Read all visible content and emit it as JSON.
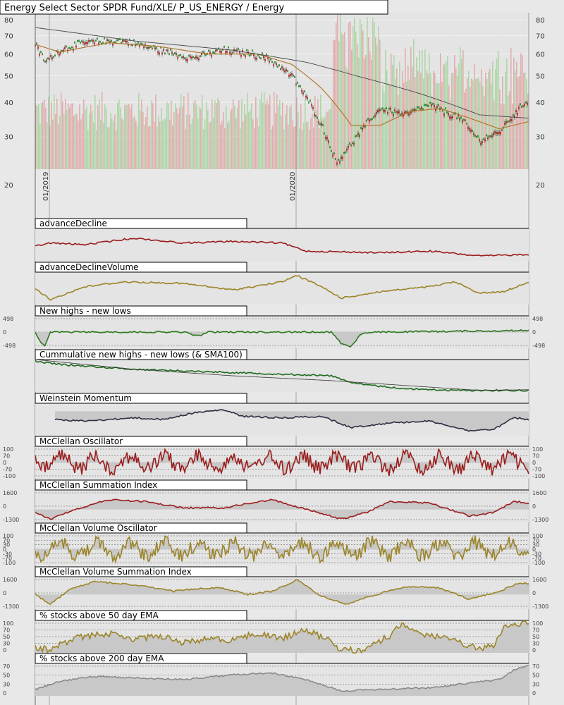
{
  "chart_data": {
    "type": "line",
    "title": "Energy Select Sector SPDR Fund/XLE/ P_US_ENERGY / Energy",
    "x_labels": [
      "01/2019",
      "01/2020"
    ],
    "main": {
      "y_ticks": [
        80,
        70,
        60,
        50,
        40,
        30,
        20
      ],
      "scale": "log",
      "ylim": [
        20,
        85
      ],
      "price_series": "candlestick",
      "price_path": [
        [
          0,
          65
        ],
        [
          0.02,
          56
        ],
        [
          0.05,
          62
        ],
        [
          0.1,
          66
        ],
        [
          0.18,
          67
        ],
        [
          0.25,
          62
        ],
        [
          0.32,
          58
        ],
        [
          0.38,
          62
        ],
        [
          0.44,
          60
        ],
        [
          0.47,
          58
        ],
        [
          0.52,
          50
        ],
        [
          0.58,
          33
        ],
        [
          0.61,
          24
        ],
        [
          0.64,
          28
        ],
        [
          0.7,
          38
        ],
        [
          0.75,
          36
        ],
        [
          0.8,
          39
        ],
        [
          0.86,
          35
        ],
        [
          0.9,
          29
        ],
        [
          0.94,
          31
        ],
        [
          0.97,
          36
        ],
        [
          1.0,
          41
        ]
      ],
      "sma_short_path": [
        [
          0,
          65
        ],
        [
          0.05,
          61
        ],
        [
          0.15,
          66
        ],
        [
          0.25,
          64
        ],
        [
          0.35,
          60
        ],
        [
          0.45,
          60
        ],
        [
          0.52,
          55
        ],
        [
          0.58,
          45
        ],
        [
          0.64,
          33
        ],
        [
          0.7,
          33
        ],
        [
          0.76,
          37
        ],
        [
          0.82,
          38
        ],
        [
          0.88,
          35
        ],
        [
          0.94,
          32
        ],
        [
          1.0,
          34
        ]
      ],
      "sma_long_path": [
        [
          0,
          75
        ],
        [
          0.2,
          67
        ],
        [
          0.4,
          62
        ],
        [
          0.55,
          56
        ],
        [
          0.65,
          50
        ],
        [
          0.78,
          43
        ],
        [
          0.9,
          36
        ],
        [
          1.0,
          35
        ]
      ]
    },
    "panels": [
      {
        "name": "advanceDecline",
        "color": "#9b1c1c",
        "ticks": [],
        "shaded": false,
        "path": [
          [
            0,
            0.55
          ],
          [
            0.03,
            0.45
          ],
          [
            0.1,
            0.5
          ],
          [
            0.2,
            0.3
          ],
          [
            0.3,
            0.45
          ],
          [
            0.4,
            0.4
          ],
          [
            0.5,
            0.45
          ],
          [
            0.55,
            0.7
          ],
          [
            0.7,
            0.75
          ],
          [
            0.8,
            0.7
          ],
          [
            0.9,
            0.85
          ],
          [
            1,
            0.8
          ]
        ]
      },
      {
        "name": "advanceDeclineVolume",
        "color": "#9b8428",
        "ticks": [],
        "shaded": false,
        "path": [
          [
            0,
            0.5
          ],
          [
            0.03,
            0.85
          ],
          [
            0.1,
            0.45
          ],
          [
            0.18,
            0.3
          ],
          [
            0.3,
            0.35
          ],
          [
            0.4,
            0.55
          ],
          [
            0.5,
            0.3
          ],
          [
            0.53,
            0.1
          ],
          [
            0.58,
            0.45
          ],
          [
            0.62,
            0.8
          ],
          [
            0.7,
            0.6
          ],
          [
            0.8,
            0.45
          ],
          [
            0.85,
            0.3
          ],
          [
            0.9,
            0.65
          ],
          [
            0.95,
            0.6
          ],
          [
            1,
            0.3
          ]
        ]
      },
      {
        "name": "New highs - new lows",
        "color": "#2d7a1e",
        "ticks": [
          "498",
          "0",
          "-498"
        ],
        "shaded": true,
        "zero": 0.5,
        "path": [
          [
            0,
            0.5
          ],
          [
            0.01,
            0.8
          ],
          [
            0.02,
            0.95
          ],
          [
            0.03,
            0.5
          ],
          [
            0.3,
            0.5
          ],
          [
            0.33,
            0.62
          ],
          [
            0.35,
            0.5
          ],
          [
            0.6,
            0.5
          ],
          [
            0.62,
            0.85
          ],
          [
            0.64,
            0.95
          ],
          [
            0.66,
            0.55
          ],
          [
            0.7,
            0.5
          ],
          [
            1,
            0.45
          ]
        ]
      },
      {
        "name": "Cummulative new highs - new lows (& SMA100)",
        "color": "#1e6b1e",
        "ticks": [],
        "shaded": false,
        "path": [
          [
            0,
            0.05
          ],
          [
            0.05,
            0.15
          ],
          [
            0.2,
            0.3
          ],
          [
            0.4,
            0.4
          ],
          [
            0.6,
            0.5
          ],
          [
            0.65,
            0.75
          ],
          [
            0.75,
            0.9
          ],
          [
            0.85,
            0.95
          ],
          [
            1,
            0.95
          ]
        ],
        "path2": [
          [
            0,
            0
          ],
          [
            0.2,
            0.3
          ],
          [
            0.4,
            0.5
          ],
          [
            0.6,
            0.65
          ],
          [
            0.8,
            0.85
          ],
          [
            0.9,
            0.95
          ],
          [
            1,
            0.93
          ]
        ]
      },
      {
        "name": "Weinstein Momentum",
        "color": "#2e2e45",
        "ticks": [],
        "shaded": true,
        "zero": 0.25,
        "path": [
          [
            0.04,
            0.5
          ],
          [
            0.1,
            0.55
          ],
          [
            0.2,
            0.45
          ],
          [
            0.26,
            0.5
          ],
          [
            0.32,
            0.3
          ],
          [
            0.38,
            0.2
          ],
          [
            0.42,
            0.4
          ],
          [
            0.5,
            0.45
          ],
          [
            0.58,
            0.4
          ],
          [
            0.64,
            0.75
          ],
          [
            0.72,
            0.6
          ],
          [
            0.8,
            0.55
          ],
          [
            0.88,
            0.85
          ],
          [
            0.93,
            0.8
          ],
          [
            0.97,
            0.45
          ],
          [
            1,
            0.5
          ]
        ]
      },
      {
        "name": "McClellan Oscillator",
        "color": "#9b1c1c",
        "ticks": [
          "100",
          "70",
          "0",
          "-70",
          "-100"
        ],
        "shaded": true,
        "zero": 0.5,
        "osc": true
      },
      {
        "name": "McClellan Summation Index",
        "color": "#9b1c1c",
        "ticks": [
          "1600",
          "0",
          "-1300"
        ],
        "shaded": true,
        "zero": 0.6,
        "path": [
          [
            0,
            0.7
          ],
          [
            0.03,
            0.9
          ],
          [
            0.08,
            0.6
          ],
          [
            0.15,
            0.3
          ],
          [
            0.22,
            0.35
          ],
          [
            0.3,
            0.55
          ],
          [
            0.38,
            0.55
          ],
          [
            0.42,
            0.45
          ],
          [
            0.48,
            0.3
          ],
          [
            0.55,
            0.6
          ],
          [
            0.62,
            0.9
          ],
          [
            0.67,
            0.7
          ],
          [
            0.72,
            0.35
          ],
          [
            0.8,
            0.4
          ],
          [
            0.88,
            0.8
          ],
          [
            0.93,
            0.7
          ],
          [
            0.97,
            0.35
          ],
          [
            1,
            0.4
          ]
        ]
      },
      {
        "name": "McClellan Volume Oscillator",
        "color": "#9b8428",
        "ticks": [
          "100",
          "70",
          "30",
          "0",
          "-30",
          "-70",
          "-100"
        ],
        "shaded": true,
        "zero": 0.5,
        "osc": true
      },
      {
        "name": "McClellan Volume Summation Index",
        "color": "#9b8428",
        "ticks": [
          "1600",
          "0",
          "-1300"
        ],
        "shaded": true,
        "zero": 0.55,
        "path": [
          [
            0,
            0.55
          ],
          [
            0.03,
            0.85
          ],
          [
            0.07,
            0.4
          ],
          [
            0.12,
            0.15
          ],
          [
            0.2,
            0.25
          ],
          [
            0.28,
            0.45
          ],
          [
            0.34,
            0.35
          ],
          [
            0.38,
            0.35
          ],
          [
            0.43,
            0.55
          ],
          [
            0.48,
            0.45
          ],
          [
            0.53,
            0.1
          ],
          [
            0.58,
            0.6
          ],
          [
            0.63,
            0.85
          ],
          [
            0.68,
            0.6
          ],
          [
            0.75,
            0.3
          ],
          [
            0.82,
            0.35
          ],
          [
            0.88,
            0.7
          ],
          [
            0.94,
            0.45
          ],
          [
            0.98,
            0.2
          ],
          [
            1,
            0.2
          ]
        ]
      },
      {
        "name": "% stocks above 50 day EMA",
        "color": "#9b8428",
        "ticks": [
          "100",
          "70",
          "50",
          "30",
          "0"
        ],
        "shaded": true,
        "zero": 1.0,
        "pct": true
      },
      {
        "name": "% stocks above 200 day EMA",
        "color": "#8a8a8a",
        "ticks": [
          "70",
          "50",
          "30",
          "0"
        ],
        "shaded": true,
        "zero": 1.0,
        "pct": true,
        "path": [
          [
            0,
            0.8
          ],
          [
            0.05,
            0.55
          ],
          [
            0.12,
            0.4
          ],
          [
            0.2,
            0.45
          ],
          [
            0.3,
            0.5
          ],
          [
            0.4,
            0.35
          ],
          [
            0.48,
            0.3
          ],
          [
            0.55,
            0.5
          ],
          [
            0.62,
            0.85
          ],
          [
            0.7,
            0.8
          ],
          [
            0.8,
            0.75
          ],
          [
            0.88,
            0.6
          ],
          [
            0.94,
            0.5
          ],
          [
            0.97,
            0.2
          ],
          [
            1,
            0.05
          ]
        ]
      }
    ]
  }
}
